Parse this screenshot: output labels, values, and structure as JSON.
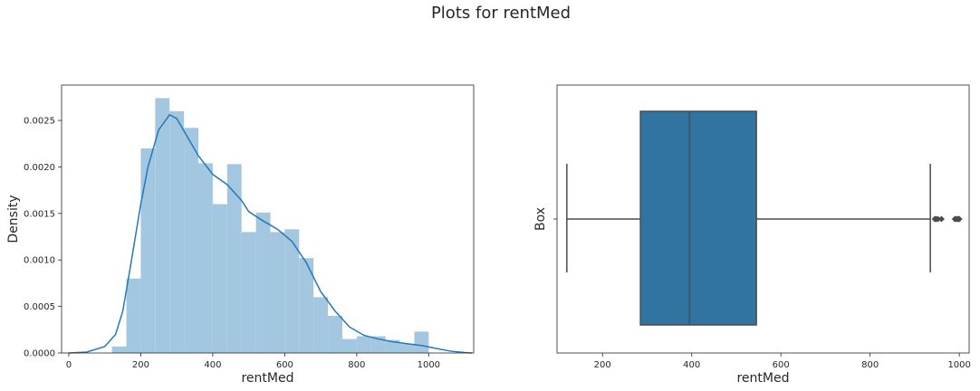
{
  "suptitle": "Plots for rentMed",
  "chart_data": [
    {
      "type": "histogram",
      "xlabel": "rentMed",
      "ylabel": "Density",
      "xlim": [
        -20,
        1125
      ],
      "ylim": [
        0,
        0.00288
      ],
      "xticks": [
        0,
        200,
        400,
        600,
        800,
        1000
      ],
      "yticks": [
        0.0,
        0.0005,
        0.001,
        0.0015,
        0.002,
        0.0025
      ],
      "ytick_labels": [
        "0.0000",
        "0.0005",
        "0.0010",
        "0.0015",
        "0.0020",
        "0.0025"
      ],
      "bar_color": "#a4c7e1",
      "kde_color": "#2778b4",
      "bins": [
        {
          "x0": 120,
          "x1": 160,
          "density": 7e-05
        },
        {
          "x0": 160,
          "x1": 200,
          "density": 0.0008
        },
        {
          "x0": 200,
          "x1": 240,
          "density": 0.0022
        },
        {
          "x0": 240,
          "x1": 280,
          "density": 0.00274
        },
        {
          "x0": 280,
          "x1": 320,
          "density": 0.0026
        },
        {
          "x0": 320,
          "x1": 360,
          "density": 0.00242
        },
        {
          "x0": 360,
          "x1": 400,
          "density": 0.00204
        },
        {
          "x0": 400,
          "x1": 440,
          "density": 0.0016
        },
        {
          "x0": 440,
          "x1": 480,
          "density": 0.00203
        },
        {
          "x0": 480,
          "x1": 520,
          "density": 0.0013
        },
        {
          "x0": 520,
          "x1": 560,
          "density": 0.00151
        },
        {
          "x0": 560,
          "x1": 600,
          "density": 0.0013
        },
        {
          "x0": 600,
          "x1": 640,
          "density": 0.00133
        },
        {
          "x0": 640,
          "x1": 680,
          "density": 0.00102
        },
        {
          "x0": 680,
          "x1": 720,
          "density": 0.0006
        },
        {
          "x0": 720,
          "x1": 760,
          "density": 0.0004
        },
        {
          "x0": 760,
          "x1": 800,
          "density": 0.00015
        },
        {
          "x0": 800,
          "x1": 840,
          "density": 0.00018
        },
        {
          "x0": 840,
          "x1": 880,
          "density": 0.00018
        },
        {
          "x0": 880,
          "x1": 920,
          "density": 0.00014
        },
        {
          "x0": 920,
          "x1": 960,
          "density": 0.0001
        },
        {
          "x0": 960,
          "x1": 1000,
          "density": 0.00023
        }
      ],
      "kde": {
        "x": [
          0,
          50,
          100,
          130,
          150,
          170,
          200,
          220,
          250,
          280,
          300,
          330,
          360,
          400,
          440,
          480,
          500,
          540,
          580,
          620,
          660,
          700,
          740,
          780,
          820,
          860,
          900,
          940,
          980,
          1020,
          1060,
          1100,
          1120
        ],
        "y": [
          0,
          1e-05,
          7e-05,
          0.0002,
          0.00045,
          0.0009,
          0.0016,
          0.002,
          0.0024,
          0.00256,
          0.00252,
          0.00232,
          0.00212,
          0.00192,
          0.00181,
          0.00164,
          0.00152,
          0.00142,
          0.00133,
          0.0012,
          0.00097,
          0.00066,
          0.00045,
          0.00028,
          0.00019,
          0.00015,
          0.00012,
          0.0001,
          8e-05,
          5e-05,
          2e-05,
          5e-06,
          0
        ]
      }
    },
    {
      "type": "box",
      "xlabel": "rentMed",
      "ylabel": "Box",
      "xlim": [
        98,
        1022
      ],
      "xticks": [
        200,
        400,
        600,
        800,
        1000
      ],
      "box_color": "#3274a1",
      "line_color": "#4c4c4c",
      "whisker_low": 120,
      "q1": 285,
      "median": 395,
      "q3": 545,
      "whisker_high": 935,
      "outliers": [
        945,
        948,
        952,
        960,
        990,
        993,
        996,
        998,
        1000
      ]
    }
  ]
}
